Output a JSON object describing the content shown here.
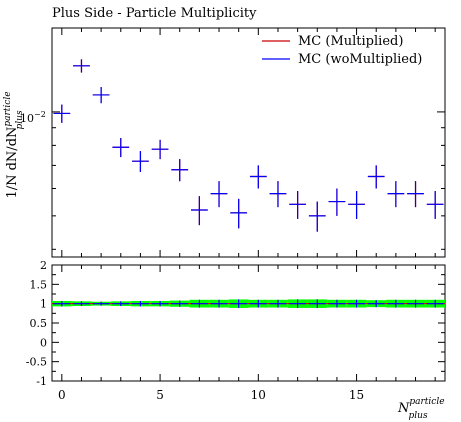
{
  "title": "Plus Side - Particle Multiplicity",
  "colors": {
    "series_multiplied": "#cc0000",
    "series_womultiplied": "#0000ff",
    "ratio_band": "#00ff00",
    "axis": "#000000"
  },
  "chart_data": [
    {
      "panel": "main",
      "type": "scatter",
      "title": "Plus Side - Particle Multiplicity",
      "xlabel_main": "N",
      "xlabel_sup": "particle",
      "xlabel_sub": "plus",
      "ylabel_prefix": "1/N dN/dN",
      "ylabel_sup": "particle",
      "ylabel_sub": "plus",
      "yscale": "log",
      "xlim": [
        -0.5,
        19.5
      ],
      "ylim": [
        0.0038,
        0.0175
      ],
      "ytick_label": "10",
      "ytick_exp": "−2",
      "ytick_value": 0.01,
      "legend_position": "top-right",
      "series": [
        {
          "name": "MC (Multiplied)",
          "x": [
            0,
            1,
            2,
            3,
            4,
            5,
            6,
            7,
            8,
            9,
            10,
            11,
            12,
            13,
            14,
            15,
            16,
            17,
            18,
            19
          ],
          "y": [
            0.0099,
            0.0136,
            0.0112,
            0.0079,
            0.0072,
            0.0078,
            0.0068,
            0.0052,
            0.0058,
            0.0051,
            0.0065,
            0.0058,
            0.0054,
            0.005,
            0.0055,
            0.0054,
            0.0065,
            0.0058,
            0.0058,
            0.0054
          ],
          "yerr": [
            0.0006,
            0.0006,
            0.0006,
            0.0005,
            0.0005,
            0.0005,
            0.0005,
            0.0005,
            0.0005,
            0.0005,
            0.0005,
            0.0005,
            0.0005,
            0.0005,
            0.0005,
            0.0005,
            0.0005,
            0.0005,
            0.0005,
            0.0005
          ]
        },
        {
          "name": "MC (woMultiplied)",
          "x": [
            0,
            1,
            2,
            3,
            4,
            5,
            6,
            7,
            8,
            9,
            10,
            11,
            12,
            13,
            14,
            15,
            16,
            17,
            18,
            19
          ],
          "y": [
            0.0099,
            0.0136,
            0.0112,
            0.0079,
            0.0072,
            0.0078,
            0.0068,
            0.0052,
            0.0058,
            0.0051,
            0.0065,
            0.0058,
            0.0054,
            0.005,
            0.0055,
            0.0054,
            0.0065,
            0.0058,
            0.0058,
            0.0054
          ],
          "yerr": [
            0.0006,
            0.0006,
            0.0006,
            0.0005,
            0.0005,
            0.0005,
            0.0005,
            0.0005,
            0.0005,
            0.0005,
            0.0005,
            0.0005,
            0.0005,
            0.0005,
            0.0005,
            0.0005,
            0.0005,
            0.0005,
            0.0005,
            0.0005
          ]
        }
      ]
    },
    {
      "panel": "ratio",
      "type": "scatter",
      "xlim": [
        -0.5,
        19.5
      ],
      "ylim": [
        -1,
        2
      ],
      "xticks": [
        0,
        5,
        10,
        15
      ],
      "xtick_labels": [
        "0",
        "5",
        "10",
        "15"
      ],
      "yticks": [
        -1,
        -0.5,
        0,
        0.5,
        1,
        1.5,
        2
      ],
      "ytick_labels": [
        "-1",
        "-0.5",
        "0",
        "0.5",
        "1",
        "1.5",
        "2"
      ],
      "reference_line": 1,
      "band_halfwidth": [
        0.07,
        0.06,
        0.05,
        0.06,
        0.07,
        0.07,
        0.08,
        0.1,
        0.1,
        0.11,
        0.1,
        0.1,
        0.11,
        0.11,
        0.1,
        0.1,
        0.09,
        0.1,
        0.1,
        0.1
      ],
      "x": [
        0,
        1,
        2,
        3,
        4,
        5,
        6,
        7,
        8,
        9,
        10,
        11,
        12,
        13,
        14,
        15,
        16,
        17,
        18,
        19
      ],
      "y": [
        1,
        1,
        1,
        1,
        1,
        1,
        1,
        1,
        1,
        1,
        1,
        1,
        1,
        1,
        1,
        1,
        1,
        1,
        1,
        1
      ],
      "yerr": [
        0.07,
        0.06,
        0.05,
        0.06,
        0.07,
        0.07,
        0.08,
        0.1,
        0.1,
        0.11,
        0.1,
        0.1,
        0.11,
        0.11,
        0.1,
        0.1,
        0.09,
        0.1,
        0.1,
        0.1
      ]
    }
  ]
}
